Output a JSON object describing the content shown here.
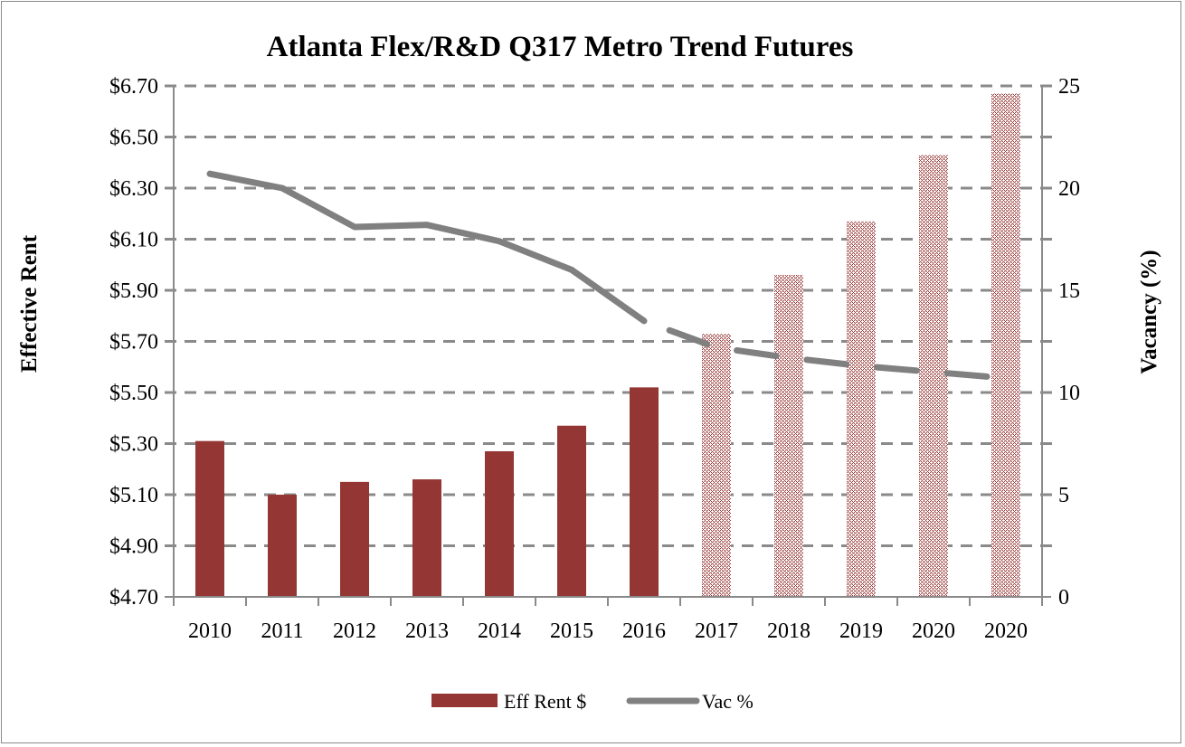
{
  "chart_data": {
    "type": "bar",
    "title": "Atlanta Flex/R&D Q317 Metro Trend Futures",
    "xlabel": "",
    "ylabel": "Effective Rent",
    "y2label": "Vacancy (%)",
    "categories": [
      "2010",
      "2011",
      "2012",
      "2013",
      "2014",
      "2015",
      "2016",
      "2017",
      "2018",
      "2019",
      "2020",
      "2020"
    ],
    "ylim": [
      4.7,
      6.7
    ],
    "y_ticks": [
      "$4.70",
      "$4.90",
      "$5.10",
      "$5.30",
      "$5.50",
      "$5.70",
      "$5.90",
      "$6.10",
      "$6.30",
      "$6.50",
      "$6.70"
    ],
    "y2lim": [
      0,
      25
    ],
    "y2_ticks": [
      "0",
      "5",
      "10",
      "15",
      "20",
      "25"
    ],
    "grid": true,
    "legend_position": "bottom",
    "forecast_start_index": 7,
    "series": [
      {
        "name": "Eff Rent $",
        "type": "bar",
        "axis": "left",
        "color": "#943634",
        "values": [
          5.31,
          5.1,
          5.15,
          5.16,
          5.27,
          5.37,
          5.52,
          5.73,
          5.96,
          6.17,
          6.43,
          6.67
        ]
      },
      {
        "name": "Vac %",
        "type": "line",
        "axis": "right",
        "color": "#808080",
        "values": [
          20.7,
          20.0,
          18.1,
          18.2,
          17.4,
          16.0,
          13.5,
          12.2,
          11.7,
          11.3,
          11.0,
          10.7
        ]
      }
    ]
  }
}
